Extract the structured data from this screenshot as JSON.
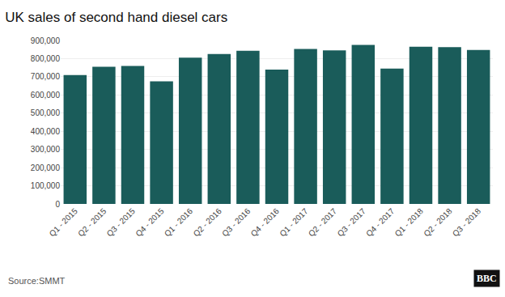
{
  "chart_data": {
    "type": "bar",
    "title": "UK sales of second hand diesel cars",
    "categories": [
      "Q1 - 2015",
      "Q2 - 2015",
      "Q3 - 2015",
      "Q4 - 2015",
      "Q1 - 2016",
      "Q2 - 2016",
      "Q3 - 2016",
      "Q4 - 2016",
      "Q1 - 2017",
      "Q2 - 2017",
      "Q3 - 2017",
      "Q4 - 2017",
      "Q1 - 2018",
      "Q2 - 2018",
      "Q3 - 2018"
    ],
    "values": [
      710000,
      755000,
      760000,
      675000,
      805000,
      825000,
      843000,
      740000,
      853000,
      845000,
      875000,
      745000,
      865000,
      863000,
      848000
    ],
    "color": "#1a5c5a",
    "ylim": [
      0,
      900000
    ],
    "yticks": [
      {
        "value": 0,
        "label": "0"
      },
      {
        "value": 100000,
        "label": "100,000"
      },
      {
        "value": 200000,
        "label": "200,000"
      },
      {
        "value": 300000,
        "label": "300,000"
      },
      {
        "value": 400000,
        "label": "400,000"
      },
      {
        "value": 500000,
        "label": "500,000"
      },
      {
        "value": 600000,
        "label": "600,000"
      },
      {
        "value": 700000,
        "label": "700,000"
      },
      {
        "value": 800000,
        "label": "800,000"
      },
      {
        "value": 900000,
        "label": "900,000"
      }
    ],
    "grid": true,
    "annotations": [
      "Source:SMMT",
      "BBC"
    ]
  }
}
